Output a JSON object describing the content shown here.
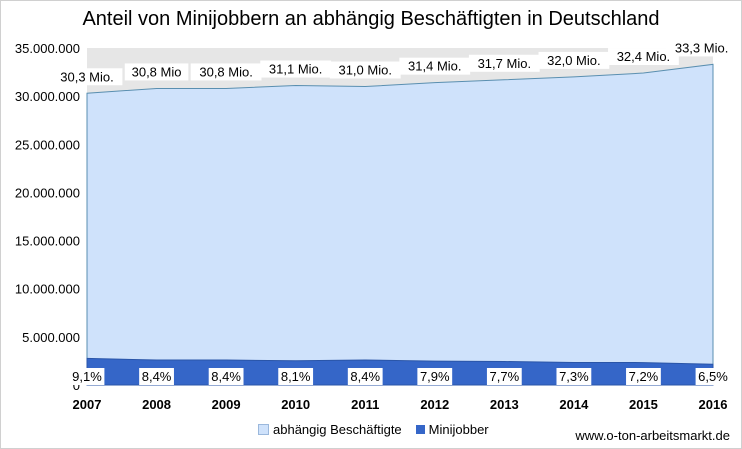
{
  "chart_data": {
    "type": "area",
    "title": "Anteil von Minijobbern an abhängig Beschäftigten in Deutschland",
    "x": [
      "2007",
      "2008",
      "2009",
      "2010",
      "2011",
      "2012",
      "2013",
      "2014",
      "2015",
      "2016"
    ],
    "ylim": [
      0,
      35000000
    ],
    "yticks": [
      "0",
      "5.000.000",
      "10.000.000",
      "15.000.000",
      "20.000.000",
      "25.000.000",
      "30.000.000",
      "35.000.000"
    ],
    "ytick_values": [
      0,
      5000000,
      10000000,
      15000000,
      20000000,
      25000000,
      30000000,
      35000000
    ],
    "grid": false,
    "legend_position": "bottom",
    "series": [
      {
        "name": "abhängig Beschäftigte",
        "color": "#cfe2fb",
        "values": [
          30300000,
          30800000,
          30800000,
          31100000,
          31000000,
          31400000,
          31700000,
          32000000,
          32400000,
          33300000
        ],
        "labels": [
          "30,3 Mio.",
          "30,8 Mio",
          "30,8 Mio.",
          "31,1 Mio.",
          "31,0 Mio.",
          "31,4 Mio.",
          "31,7 Mio.",
          "32,0 Mio.",
          "32,4 Mio.",
          "33,3 Mio."
        ]
      },
      {
        "name": "Minijobber",
        "color": "#3566c8",
        "values": [
          2760000,
          2590000,
          2590000,
          2520000,
          2600000,
          2480000,
          2440000,
          2340000,
          2330000,
          2160000
        ],
        "labels": [
          "9,1%",
          "8,4%",
          "8,4%",
          "8,1%",
          "8,4%",
          "7,9%",
          "7,7%",
          "7,3%",
          "7,2%",
          "6,5%"
        ]
      }
    ]
  },
  "source": "www.o-ton-arbeitsmarkt.de"
}
